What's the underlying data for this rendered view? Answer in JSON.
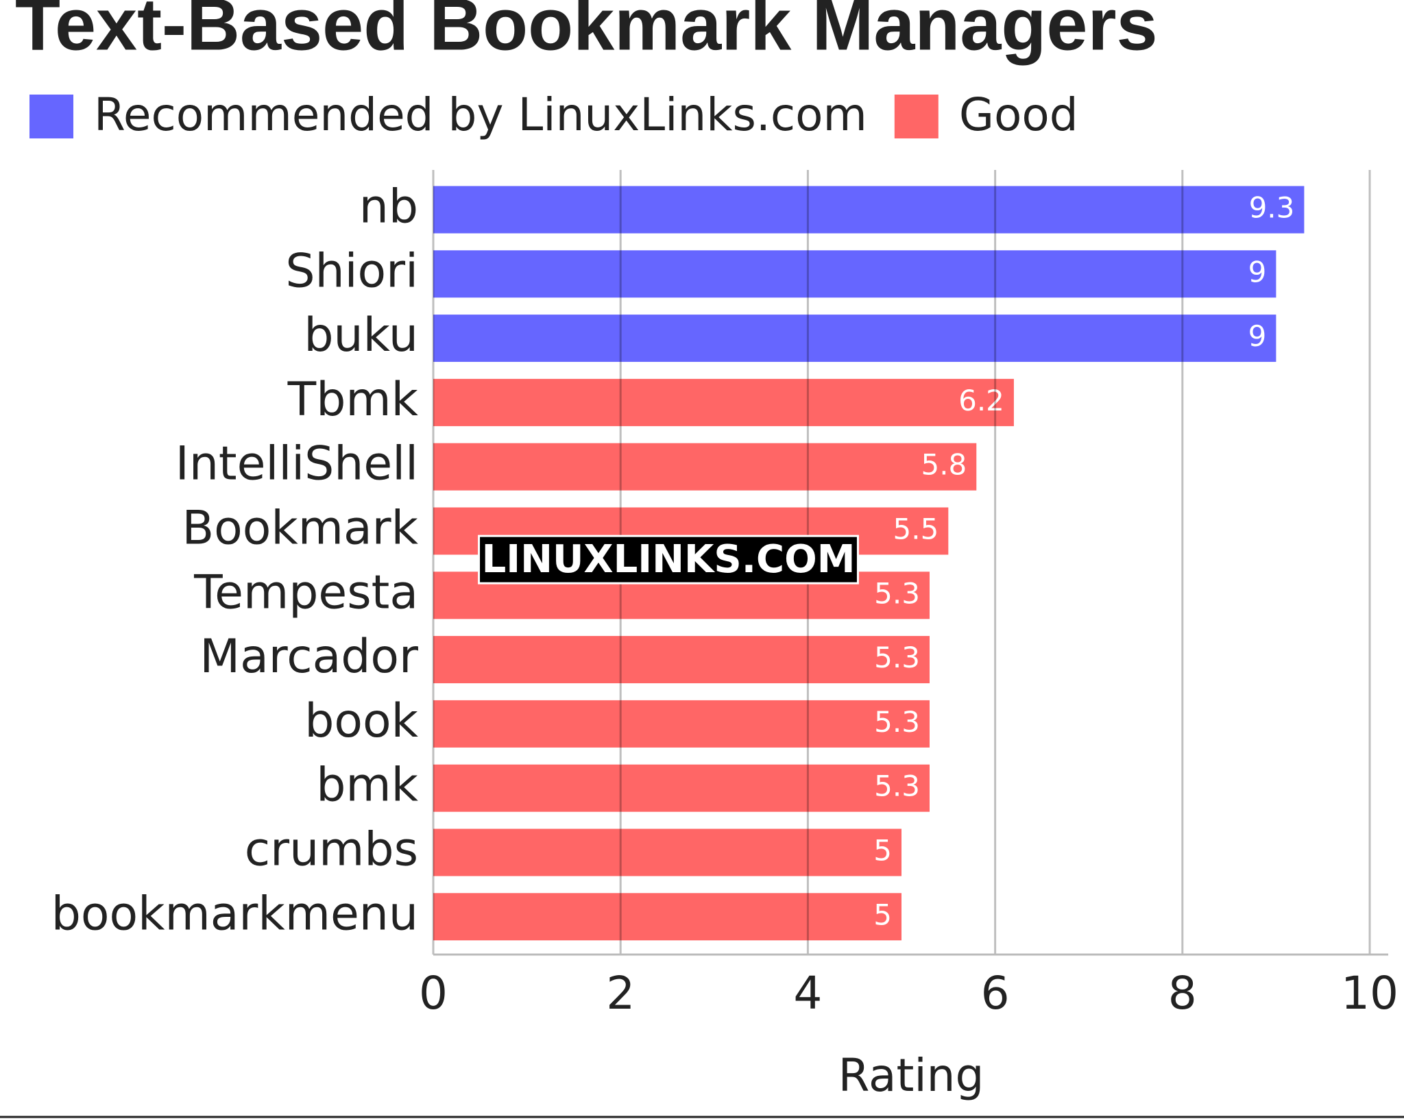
{
  "chart_data": {
    "type": "bar",
    "orientation": "horizontal",
    "title": "Text-Based Bookmark Managers",
    "categories": [
      "nb",
      "Shiori",
      "buku",
      "Tbmk",
      "IntelliShell",
      "Bookmark",
      "Tempesta",
      "Marcador",
      "book",
      "bmk",
      "crumbs",
      "bookmarkmenu"
    ],
    "series": [
      {
        "name": "Recommended by LinuxLinks.com",
        "color": "#6666ff",
        "values": [
          9.3,
          9,
          9,
          null,
          null,
          null,
          null,
          null,
          null,
          null,
          null,
          null
        ]
      },
      {
        "name": "Good",
        "color": "#ff6666",
        "values": [
          null,
          null,
          null,
          6.2,
          5.8,
          5.5,
          5.3,
          5.3,
          5.3,
          5.3,
          5,
          5
        ]
      }
    ],
    "xlabel": "Rating",
    "xlim": [
      0,
      10
    ],
    "xticks": [
      0,
      2,
      4,
      6,
      8,
      10
    ],
    "grid": true,
    "legend": "top-left",
    "watermark": "LINUXLINKS.COM"
  }
}
